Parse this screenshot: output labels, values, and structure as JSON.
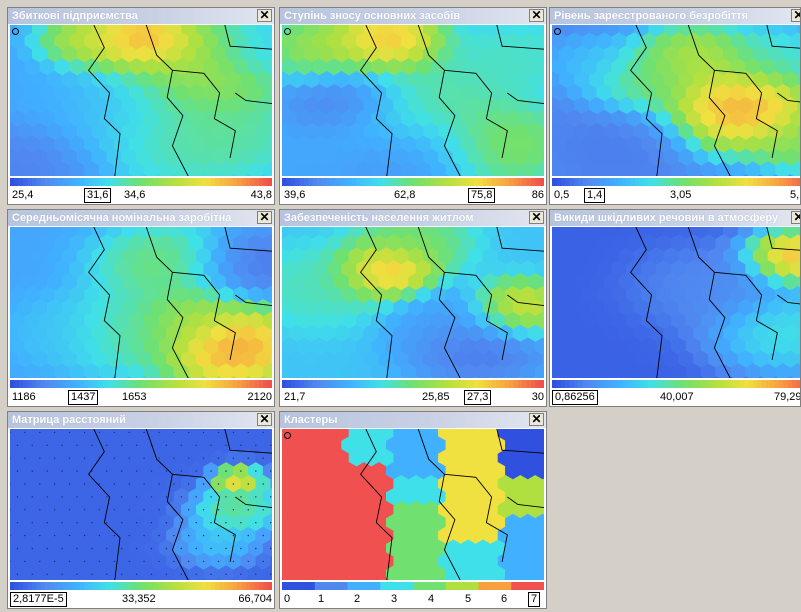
{
  "panels": [
    {
      "id": "p1",
      "title": "Збиткові підприємства",
      "scale": {
        "min_label": "25,4",
        "boxed_label": "31,6",
        "mid_label": "34,6",
        "max_label": "43,8"
      },
      "gradient": "rainbow"
    },
    {
      "id": "p2",
      "title": "Ступінь зносу основних засобів",
      "scale": {
        "min_label": "39,6",
        "boxed_label": "75,8",
        "mid_label": "62,8",
        "max_label": "86"
      },
      "gradient": "rainbow"
    },
    {
      "id": "p3",
      "title": "Рівень зареєстрованого безробіття",
      "scale": {
        "min_label": "0,5",
        "boxed_label": "1,4",
        "mid_label": "3,05",
        "max_label": "5,"
      },
      "gradient": "rainbow"
    },
    {
      "id": "p4",
      "title": "Середньомісячна номінальна заробітна",
      "scale": {
        "min_label": "1186",
        "boxed_label": "1437",
        "mid_label": "1653",
        "max_label": "2120"
      },
      "gradient": "rainbow"
    },
    {
      "id": "p5",
      "title": "Забезпеченість населення житлом",
      "scale": {
        "min_label": "21,7",
        "boxed_label": "27,3",
        "mid_label": "25,85",
        "max_label": "30"
      },
      "gradient": "rainbow"
    },
    {
      "id": "p6",
      "title": "Викиди шкідливих речовин в атмосферу",
      "scale": {
        "min_label": "",
        "boxed_label": "0,86256",
        "mid_label": "40,007",
        "max_label": "79,29"
      },
      "gradient": "rainbow"
    },
    {
      "id": "p7",
      "title": "Матрица расстояний",
      "scale": {
        "min_label": "",
        "boxed_label": "2,8177E-5",
        "mid_label": "33,352",
        "max_label": "66,704"
      },
      "gradient": "rainbow"
    },
    {
      "id": "p8",
      "title": "Кластеры",
      "scale": {
        "labels": [
          "0",
          "1",
          "2",
          "3",
          "4",
          "5",
          "6"
        ],
        "boxed_label": "7"
      },
      "gradient": "clusters"
    }
  ],
  "close_symbol": "✕",
  "colors": {
    "background": "#d4d0c8",
    "palette": [
      "#3050e0",
      "#5088f0",
      "#40b0ff",
      "#40e0e8",
      "#70e070",
      "#b0e040",
      "#f0e040",
      "#f8a040",
      "#f05050"
    ]
  }
}
